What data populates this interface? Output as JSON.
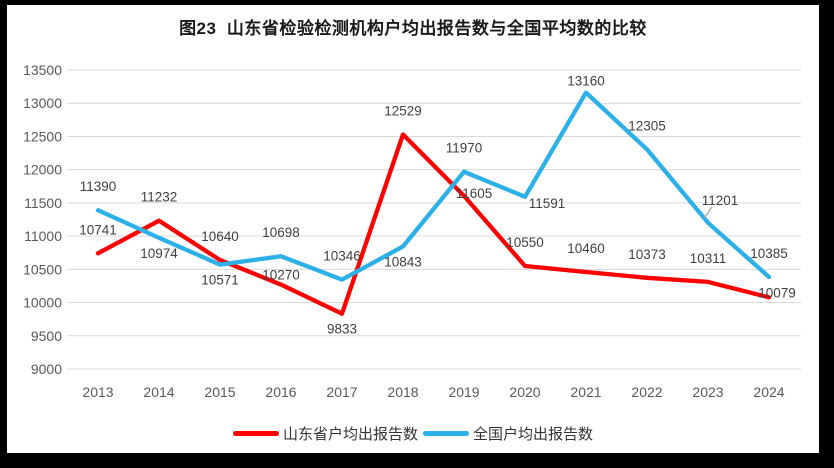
{
  "chart_data": {
    "type": "line",
    "title": "图23  山东省检验检测机构户均出报告数与全国平均数的比较",
    "categories": [
      "2013",
      "2014",
      "2015",
      "2016",
      "2017",
      "2018",
      "2019",
      "2020",
      "2021",
      "2022",
      "2023",
      "2024"
    ],
    "series": [
      {
        "name": "山东省户均出报告数",
        "color": "#FE0000",
        "values": [
          10741,
          11232,
          10640,
          10270,
          9833,
          12529,
          11605,
          10550,
          10460,
          10373,
          10311,
          10079
        ]
      },
      {
        "name": "全国户均出报告数",
        "color": "#2BB0E8",
        "values": [
          11390,
          10974,
          10571,
          10698,
          10346,
          10843,
          11970,
          11591,
          13160,
          12305,
          11201,
          10385
        ]
      }
    ],
    "ylim": [
      9000,
      13500
    ],
    "y_step": 500,
    "xlabel": "",
    "ylabel": "",
    "grid": "horizontal",
    "legend_position": "bottom",
    "colors": {
      "gridline": "#D9D9D9",
      "tick_label": "#595959",
      "data_label": "#404040",
      "leader_line": "#A6A6A6",
      "plot_background": "#FFFFFF",
      "frame": "#000000"
    }
  }
}
